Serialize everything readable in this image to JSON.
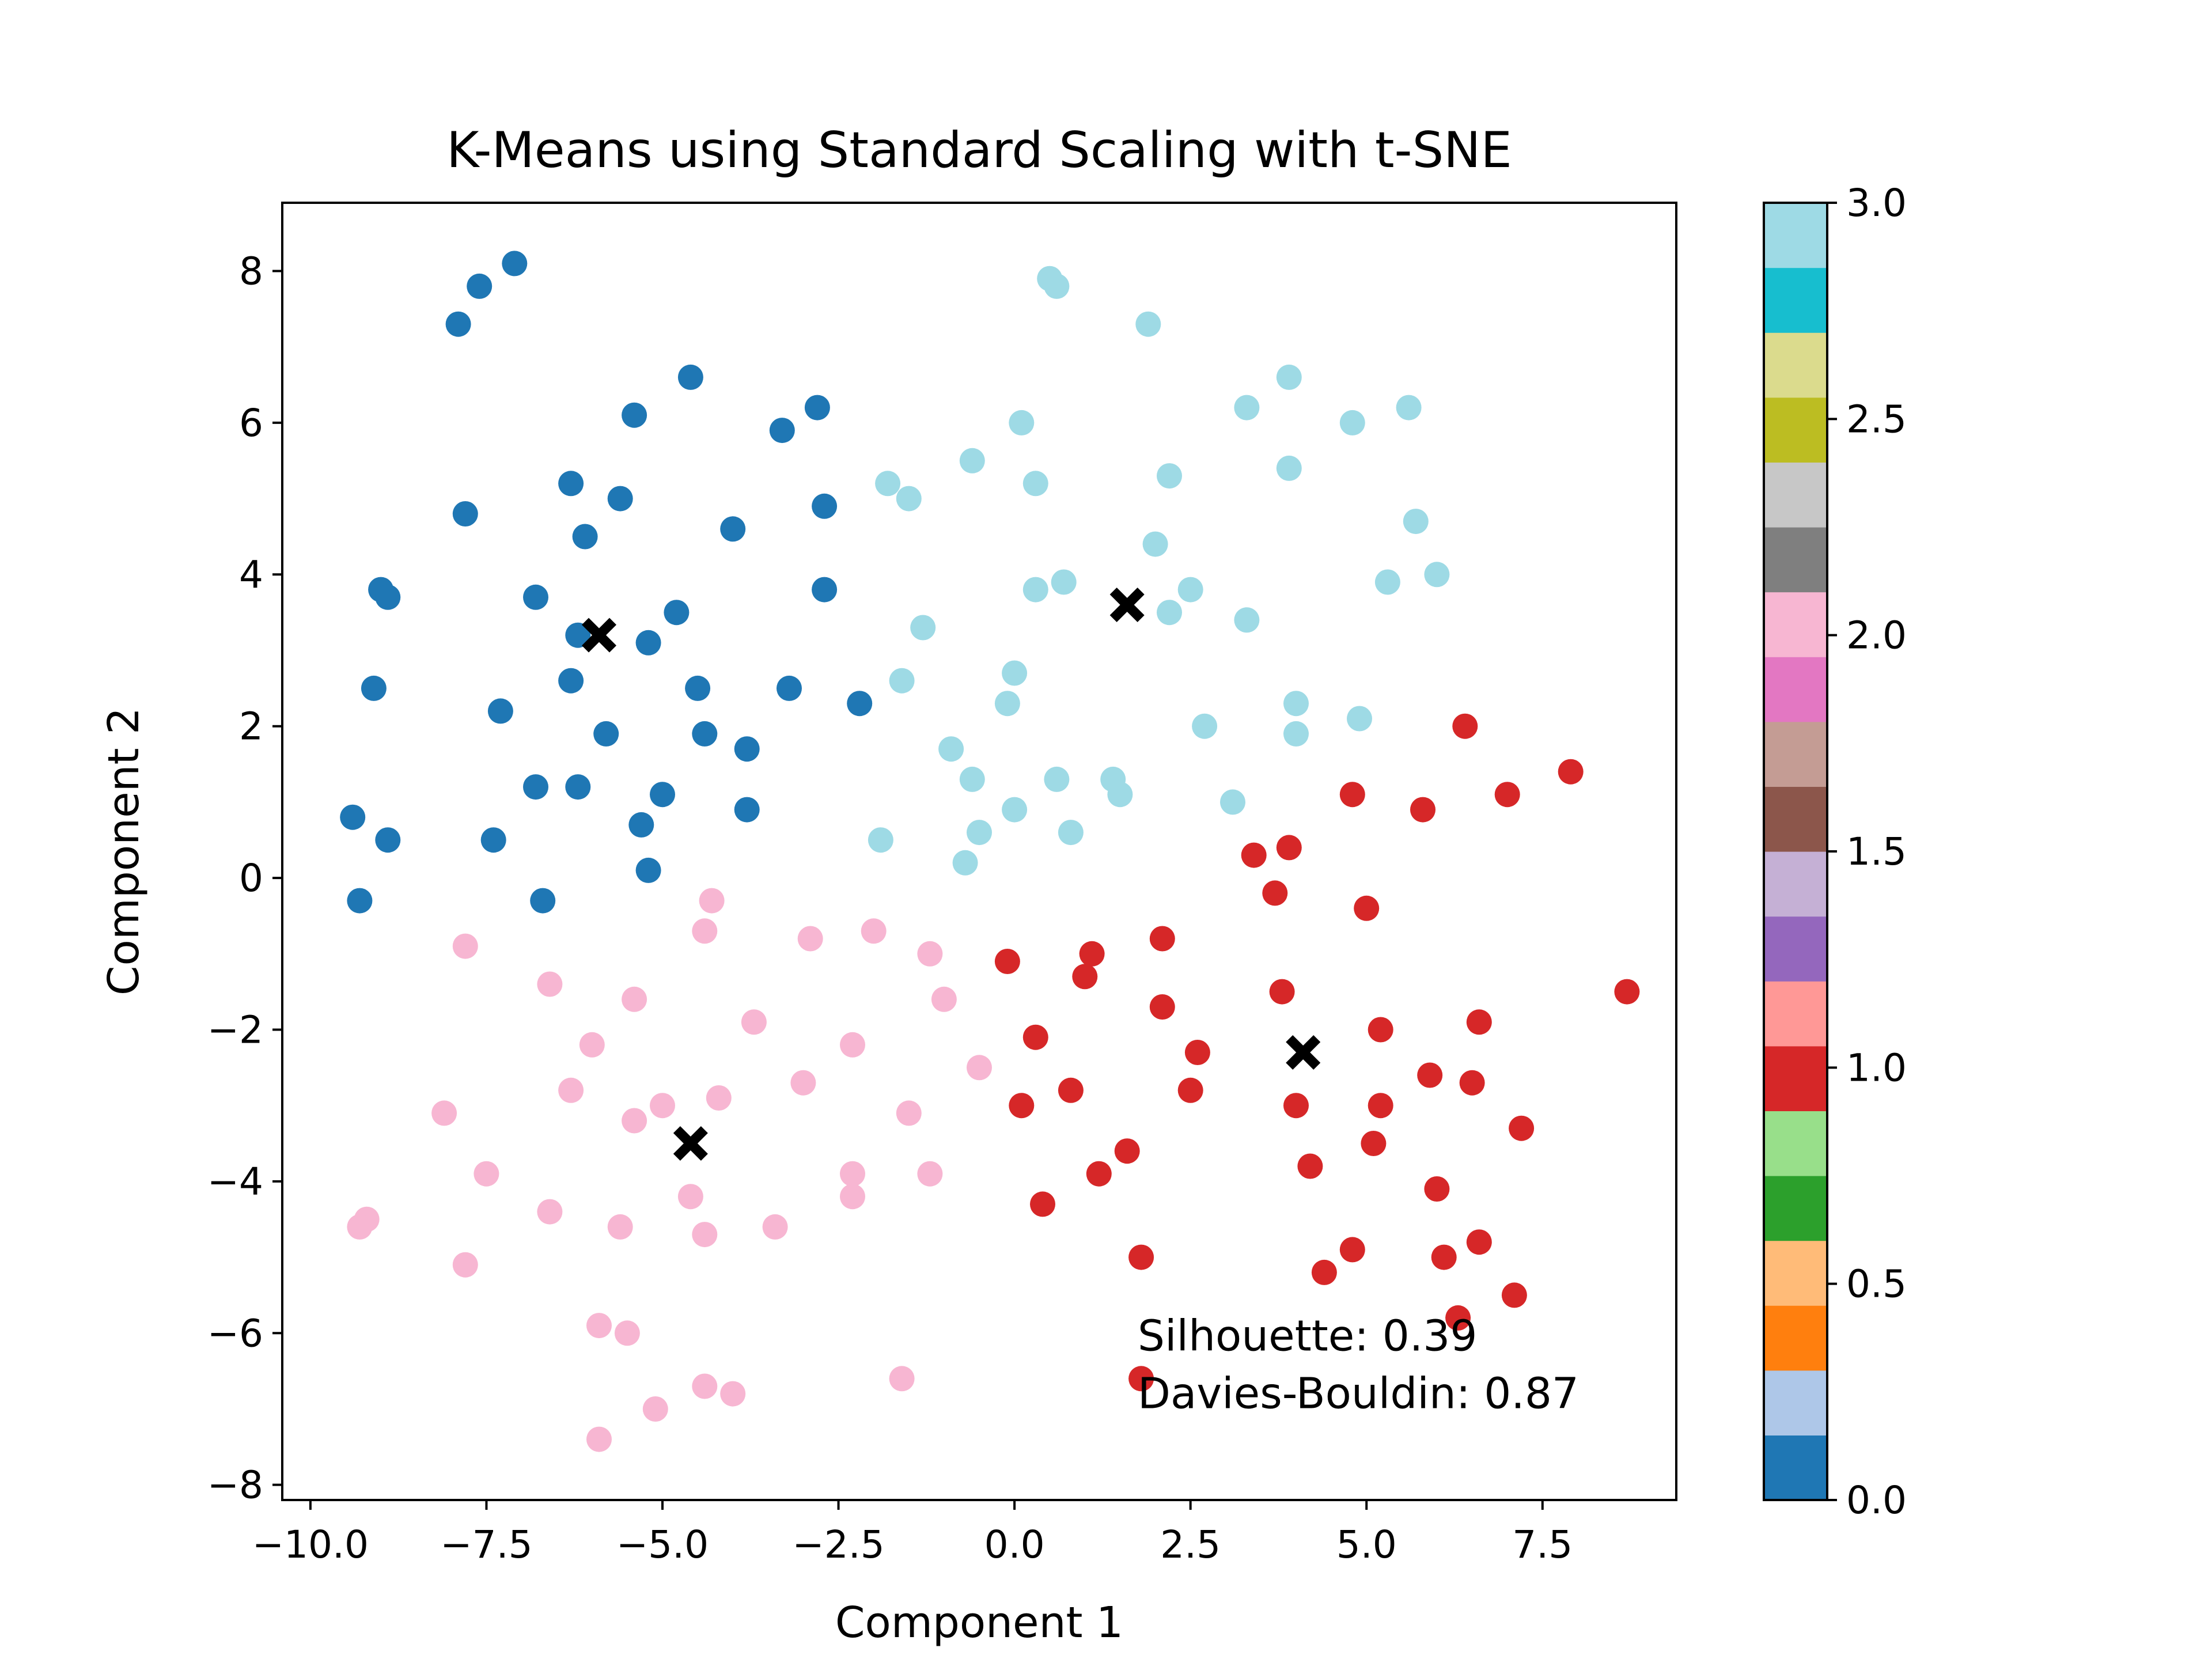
{
  "chart_data": {
    "type": "scatter",
    "title": "K-Means using Standard Scaling with t-SNE",
    "xlabel": "Component 1",
    "ylabel": "Component 2",
    "xlim": [
      -10.4,
      9.4
    ],
    "ylim": [
      -8.2,
      8.9
    ],
    "x_ticks": [
      -10.0,
      -7.5,
      -5.0,
      -2.5,
      0.0,
      2.5,
      5.0,
      7.5
    ],
    "x_tick_labels": [
      "−10.0",
      "−7.5",
      "−5.0",
      "−2.5",
      "0.0",
      "2.5",
      "5.0",
      "7.5"
    ],
    "y_ticks": [
      -8,
      -6,
      -4,
      -2,
      0,
      2,
      4,
      6,
      8
    ],
    "y_tick_labels": [
      "−8",
      "−6",
      "−4",
      "−2",
      "0",
      "2",
      "4",
      "6",
      "8"
    ],
    "grid": false,
    "colormap": "tab20",
    "colorbar": {
      "range": [
        0.0,
        3.0
      ],
      "ticks": [
        0.0,
        0.5,
        1.0,
        1.5,
        2.0,
        2.5,
        3.0
      ],
      "tick_labels": [
        "0.0",
        "0.5",
        "1.0",
        "1.5",
        "2.0",
        "2.5",
        "3.0"
      ],
      "colors": [
        "#1f77b4",
        "#aec7e8",
        "#ff7f0e",
        "#ffbb78",
        "#2ca02c",
        "#98df8a",
        "#d62728",
        "#ff9896",
        "#9467bd",
        "#c5b0d5",
        "#8c564b",
        "#c49c94",
        "#e377c2",
        "#f7b6d2",
        "#7f7f7f",
        "#c7c7c7",
        "#bcbd22",
        "#dbdb8d",
        "#17becf",
        "#9edae5"
      ]
    },
    "cluster_colors": [
      "#1f77b4",
      "#d62728",
      "#f7b6d2",
      "#9edae5"
    ],
    "centroid_color": "#000000",
    "series": [
      {
        "cluster": 0,
        "points": [
          [
            -7.1,
            8.1
          ],
          [
            -7.6,
            7.8
          ],
          [
            -7.9,
            7.3
          ],
          [
            -4.6,
            6.6
          ],
          [
            -5.4,
            6.1
          ],
          [
            -2.8,
            6.2
          ],
          [
            -3.3,
            5.9
          ],
          [
            -6.3,
            5.2
          ],
          [
            -5.6,
            5.0
          ],
          [
            -2.7,
            4.9
          ],
          [
            -7.8,
            4.8
          ],
          [
            -6.1,
            4.5
          ],
          [
            -4.0,
            4.6
          ],
          [
            -9.0,
            3.8
          ],
          [
            -8.9,
            3.7
          ],
          [
            -6.8,
            3.7
          ],
          [
            -2.7,
            3.8
          ],
          [
            -4.8,
            3.5
          ],
          [
            -6.2,
            3.2
          ],
          [
            -5.2,
            3.1
          ],
          [
            -9.1,
            2.5
          ],
          [
            -7.3,
            2.2
          ],
          [
            -6.3,
            2.6
          ],
          [
            -4.5,
            2.5
          ],
          [
            -3.2,
            2.5
          ],
          [
            -2.2,
            2.3
          ],
          [
            -5.8,
            1.9
          ],
          [
            -4.4,
            1.9
          ],
          [
            -3.8,
            1.7
          ],
          [
            -6.8,
            1.2
          ],
          [
            -6.2,
            1.2
          ],
          [
            -5.0,
            1.1
          ],
          [
            -9.4,
            0.8
          ],
          [
            -8.9,
            0.5
          ],
          [
            -7.4,
            0.5
          ],
          [
            -5.3,
            0.7
          ],
          [
            -3.8,
            0.9
          ],
          [
            -5.2,
            0.1
          ],
          [
            -9.3,
            -0.3
          ],
          [
            -6.7,
            -0.3
          ]
        ]
      },
      {
        "cluster": 1,
        "points": [
          [
            6.4,
            2.0
          ],
          [
            7.9,
            1.4
          ],
          [
            4.8,
            1.1
          ],
          [
            7.0,
            1.1
          ],
          [
            5.8,
            0.9
          ],
          [
            3.4,
            0.3
          ],
          [
            3.9,
            0.4
          ],
          [
            3.7,
            -0.2
          ],
          [
            5.0,
            -0.4
          ],
          [
            2.1,
            -0.8
          ],
          [
            -0.1,
            -1.1
          ],
          [
            1.1,
            -1.0
          ],
          [
            1.0,
            -1.3
          ],
          [
            8.7,
            -1.5
          ],
          [
            3.8,
            -1.5
          ],
          [
            2.1,
            -1.7
          ],
          [
            0.3,
            -2.1
          ],
          [
            5.2,
            -2.0
          ],
          [
            6.6,
            -1.9
          ],
          [
            2.6,
            -2.3
          ],
          [
            5.9,
            -2.6
          ],
          [
            6.5,
            -2.7
          ],
          [
            0.8,
            -2.8
          ],
          [
            2.5,
            -2.8
          ],
          [
            0.1,
            -3.0
          ],
          [
            4.0,
            -3.0
          ],
          [
            5.2,
            -3.0
          ],
          [
            7.2,
            -3.3
          ],
          [
            5.1,
            -3.5
          ],
          [
            1.6,
            -3.6
          ],
          [
            1.2,
            -3.9
          ],
          [
            4.2,
            -3.8
          ],
          [
            6.0,
            -4.1
          ],
          [
            0.4,
            -4.3
          ],
          [
            6.6,
            -4.8
          ],
          [
            1.8,
            -5.0
          ],
          [
            4.8,
            -4.9
          ],
          [
            6.1,
            -5.0
          ],
          [
            4.4,
            -5.2
          ],
          [
            7.1,
            -5.5
          ],
          [
            6.3,
            -5.8
          ],
          [
            1.8,
            -6.6
          ]
        ]
      },
      {
        "cluster": 2,
        "points": [
          [
            -4.3,
            -0.3
          ],
          [
            -4.4,
            -0.7
          ],
          [
            -7.8,
            -0.9
          ],
          [
            -2.9,
            -0.8
          ],
          [
            -2.0,
            -0.7
          ],
          [
            -1.2,
            -1.0
          ],
          [
            -6.6,
            -1.4
          ],
          [
            -5.4,
            -1.6
          ],
          [
            -1.0,
            -1.6
          ],
          [
            -3.7,
            -1.9
          ],
          [
            -6.0,
            -2.2
          ],
          [
            -2.3,
            -2.2
          ],
          [
            -0.5,
            -2.5
          ],
          [
            -6.3,
            -2.8
          ],
          [
            -3.0,
            -2.7
          ],
          [
            -8.1,
            -3.1
          ],
          [
            -5.0,
            -3.0
          ],
          [
            -4.2,
            -2.9
          ],
          [
            -1.5,
            -3.1
          ],
          [
            -5.4,
            -3.2
          ],
          [
            -7.5,
            -3.9
          ],
          [
            -2.3,
            -3.9
          ],
          [
            -1.2,
            -3.9
          ],
          [
            -4.6,
            -4.2
          ],
          [
            -2.3,
            -4.2
          ],
          [
            -6.6,
            -4.4
          ],
          [
            -9.2,
            -4.5
          ],
          [
            -9.3,
            -4.6
          ],
          [
            -5.6,
            -4.6
          ],
          [
            -4.4,
            -4.7
          ],
          [
            -3.4,
            -4.6
          ],
          [
            -7.8,
            -5.1
          ],
          [
            -5.9,
            -5.9
          ],
          [
            -5.5,
            -6.0
          ],
          [
            -4.4,
            -6.7
          ],
          [
            -4.0,
            -6.8
          ],
          [
            -1.6,
            -6.6
          ],
          [
            -5.1,
            -7.0
          ],
          [
            -5.9,
            -7.4
          ]
        ]
      },
      {
        "cluster": 3,
        "points": [
          [
            0.5,
            7.9
          ],
          [
            0.6,
            7.8
          ],
          [
            1.9,
            7.3
          ],
          [
            3.9,
            6.6
          ],
          [
            3.3,
            6.2
          ],
          [
            0.1,
            6.0
          ],
          [
            4.8,
            6.0
          ],
          [
            5.6,
            6.2
          ],
          [
            -0.6,
            5.5
          ],
          [
            3.9,
            5.4
          ],
          [
            0.3,
            5.2
          ],
          [
            2.2,
            5.3
          ],
          [
            -1.8,
            5.2
          ],
          [
            -1.5,
            5.0
          ],
          [
            5.7,
            4.7
          ],
          [
            2.0,
            4.4
          ],
          [
            0.7,
            3.9
          ],
          [
            0.3,
            3.8
          ],
          [
            2.5,
            3.8
          ],
          [
            5.3,
            3.9
          ],
          [
            6.0,
            4.0
          ],
          [
            2.2,
            3.5
          ],
          [
            3.3,
            3.4
          ],
          [
            -1.3,
            3.3
          ],
          [
            0.0,
            2.7
          ],
          [
            -1.6,
            2.6
          ],
          [
            4.0,
            2.3
          ],
          [
            -0.1,
            2.3
          ],
          [
            4.9,
            2.1
          ],
          [
            2.7,
            2.0
          ],
          [
            4.0,
            1.9
          ],
          [
            -0.9,
            1.7
          ],
          [
            -0.6,
            1.3
          ],
          [
            0.6,
            1.3
          ],
          [
            1.4,
            1.3
          ],
          [
            1.5,
            1.1
          ],
          [
            3.1,
            1.0
          ],
          [
            0.0,
            0.9
          ],
          [
            -0.5,
            0.6
          ],
          [
            0.8,
            0.6
          ],
          [
            -1.9,
            0.5
          ],
          [
            -0.7,
            0.2
          ]
        ]
      }
    ],
    "centroids": [
      [
        -5.9,
        3.2
      ],
      [
        1.6,
        3.6
      ],
      [
        4.1,
        -2.3
      ],
      [
        -4.6,
        -3.5
      ]
    ],
    "annotations": [
      "Silhouette: 0.39",
      "Davies-Bouldin: 0.87"
    ]
  }
}
